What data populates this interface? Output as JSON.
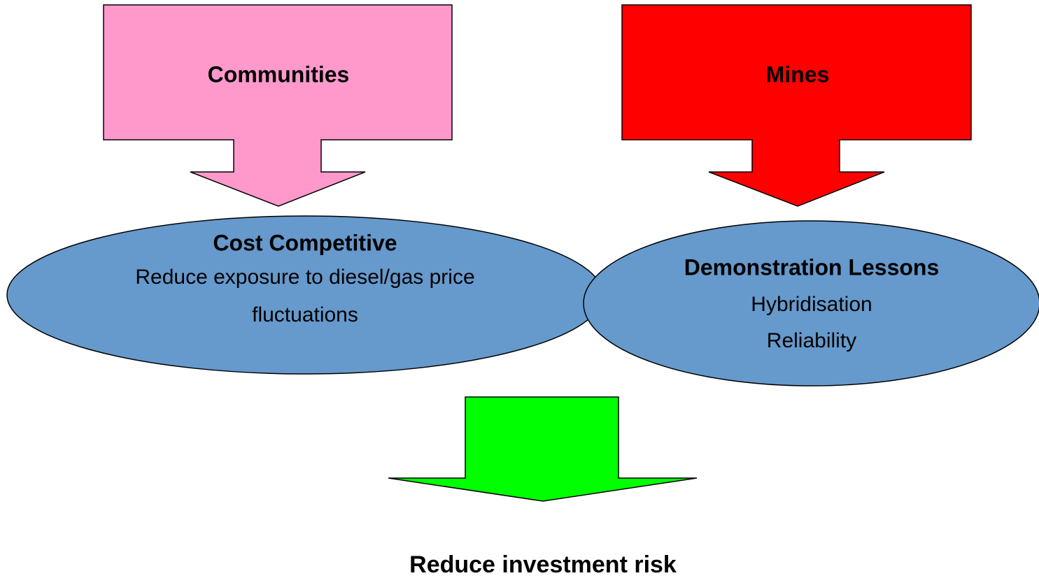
{
  "sources": [
    {
      "label": "Communities"
    },
    {
      "label": "Mines"
    }
  ],
  "benefits": [
    {
      "title": "Cost Competitive",
      "lines": [
        "Reduce exposure to diesel/gas price",
        "fluctuations"
      ]
    },
    {
      "title": "Demonstration Lessons",
      "lines": [
        "Hybridisation",
        "Reliability"
      ]
    }
  ],
  "outcome": {
    "label": "Reduce investment risk"
  }
}
